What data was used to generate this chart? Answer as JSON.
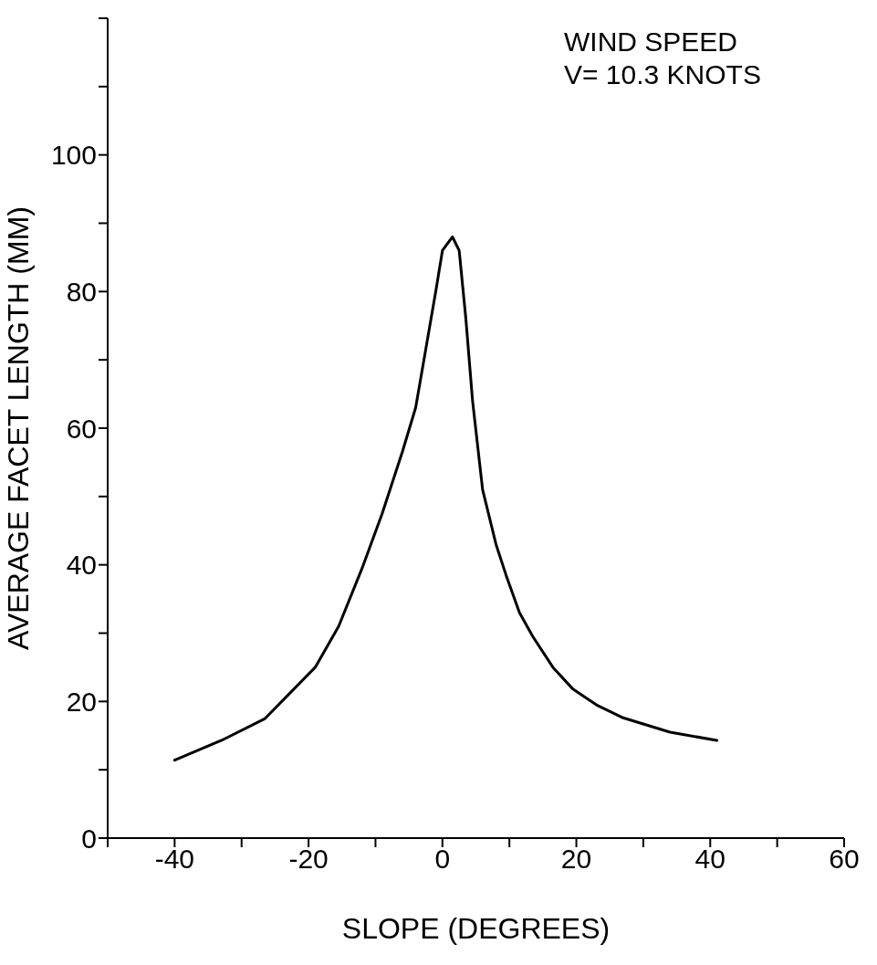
{
  "chart_data": {
    "type": "line",
    "xlabel": "SLOPE (DEGREES)",
    "ylabel": "AVERAGE FACET LENGTH (MM)",
    "annotations": [
      "WIND SPEED",
      "V= 10.3 KNOTS"
    ],
    "x": [
      -40,
      -33,
      -26.5,
      -19,
      -15.5,
      -12,
      -9,
      -6,
      -4,
      -2.5,
      -1,
      0,
      1.5,
      2.5,
      3.5,
      4.5,
      6,
      8,
      9.5,
      11.5,
      13.5,
      16.5,
      19.5,
      23,
      27,
      34,
      41
    ],
    "series": [
      {
        "color": "#000000",
        "values": [
          11.4,
          14.3,
          17.5,
          25,
          31,
          39.5,
          47.5,
          56.5,
          63,
          71.5,
          80,
          86,
          88,
          86,
          76,
          64,
          51,
          43,
          38.5,
          33,
          29.5,
          25,
          21.8,
          19.5,
          17.6,
          15.5,
          14.3
        ]
      }
    ],
    "xlim": [
      -50,
      60
    ],
    "xticks": [
      {
        "value": -50,
        "label": null
      },
      -40,
      {
        "value": -30,
        "label": null
      },
      -20,
      {
        "value": -10,
        "label": null
      },
      0,
      {
        "value": 10,
        "label": null
      },
      20,
      {
        "value": 30,
        "label": null
      },
      40,
      {
        "value": 50,
        "label": null
      },
      60
    ],
    "ylim": [
      0,
      120
    ],
    "yticks": [
      0,
      {
        "value": 10,
        "label": null
      },
      20,
      {
        "value": 30,
        "label": null
      },
      40,
      {
        "value": 50,
        "label": null
      },
      60,
      {
        "value": 70,
        "label": null
      },
      80,
      {
        "value": 90,
        "label": null
      },
      100,
      {
        "value": 110,
        "label": null
      },
      {
        "value": 120,
        "label": null
      }
    ],
    "grid": false,
    "legend": false,
    "marker": "none",
    "line_style": "solid"
  }
}
